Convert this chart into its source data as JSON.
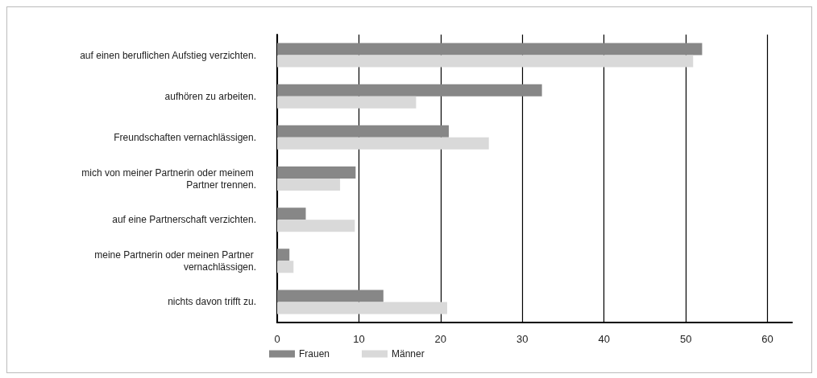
{
  "chart_data": {
    "type": "bar",
    "orientation": "horizontal",
    "categories": [
      "auf einen beruflichen Aufstieg verzichten.",
      "aufhören zu arbeiten.",
      "Freundschaften vernachlässigen.",
      "mich von meiner Partnerin oder meinem Partner trennen.",
      "auf eine Partnerschaft verzichten.",
      "meine Partnerin oder meinen Partner vernachlässigen.",
      "nichts davon trifft zu."
    ],
    "series": [
      {
        "name": "Frauen",
        "color": "#878787",
        "values": [
          52,
          32.4,
          21,
          9.6,
          3.5,
          1.5,
          13
        ]
      },
      {
        "name": "Männer",
        "color": "#d9d9d9",
        "values": [
          50.9,
          17,
          25.9,
          7.7,
          9.5,
          2,
          20.8
        ]
      }
    ],
    "xlim": [
      0,
      63
    ],
    "xticks": [
      0,
      10,
      20,
      30,
      40,
      50,
      60
    ],
    "grid": "x",
    "legend": "bottom left"
  }
}
